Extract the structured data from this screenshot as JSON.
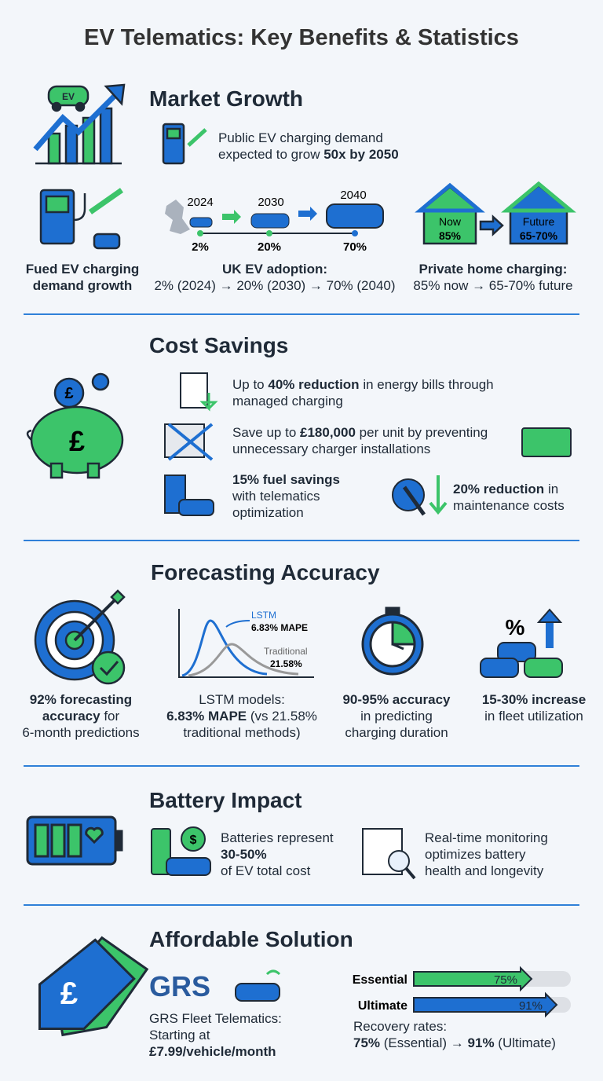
{
  "title": "EV Telematics: Key Benefits & Statistics",
  "market_growth": {
    "heading": "Market Growth",
    "icon_text": "EV",
    "headline": [
      [
        "Public EV charging demand"
      ],
      [
        "expected to grow",
        {
          "bold": "50x by 2050"
        }
      ]
    ],
    "fuel_caption": [
      [
        {
          "bold": "Fued EV charging"
        }
      ],
      [
        {
          "bold": "demand growth"
        }
      ]
    ],
    "uk_years": [
      "2024",
      "2030",
      "2040"
    ],
    "uk_shares": [
      "2%",
      "20%",
      "70%"
    ],
    "uk_caption": [
      [
        {
          "bold": "UK EV adoption:"
        }
      ],
      [
        "2% (2024) → 20% (2030) → 70% (2040)"
      ]
    ],
    "home_now": [
      "Now",
      "85%"
    ],
    "home_future": [
      "Future",
      "65-70%"
    ],
    "home_caption": [
      [
        {
          "bold": "Private home charging:"
        }
      ],
      [
        "85% now → 65-70% future"
      ]
    ]
  },
  "cost_savings": {
    "heading": "Cost Savings",
    "icon_text": "£",
    "energy": [
      [
        "Up to",
        {
          "bold": "40% reduction"
        },
        "in energy bills through"
      ],
      [
        "managed charging"
      ]
    ],
    "installations": [
      [
        "Save up to",
        {
          "bold": "£180,000"
        },
        "per unit by preventing"
      ],
      [
        "unnecessary charger installations"
      ]
    ],
    "fuel": [
      [
        {
          "bold": "15% fuel savings"
        }
      ],
      [
        "with telematics"
      ],
      [
        "optimization"
      ]
    ],
    "maintenance": [
      [
        {
          "bold": "20% reduction"
        },
        "in"
      ],
      [
        "maintenance costs"
      ]
    ]
  },
  "forecasting_accuracy": {
    "heading": "Forecasting Accuracy",
    "icon_text": "%",
    "chart_labels": {
      "lstm": "LSTM",
      "lstm_value": "6.83% MAPE",
      "traditional": "Traditional",
      "traditional_value": "21.58%"
    },
    "items": [
      [
        [
          {
            "bold": "92% forecasting"
          }
        ],
        [
          {
            "bold": "accuracy"
          },
          "for"
        ],
        [
          "6-month predictions"
        ]
      ],
      [
        [
          "LSTM models:"
        ],
        [
          {
            "bold": "6.83% MAPE"
          },
          "(vs 21.58%"
        ],
        [
          "traditional methods)"
        ]
      ],
      [
        [
          {
            "bold": "90-95% accuracy"
          }
        ],
        [
          "in predicting"
        ],
        [
          "charging duration"
        ]
      ],
      [
        [
          {
            "bold": "15-30% increase"
          }
        ],
        [
          "in fleet utilization"
        ]
      ]
    ]
  },
  "battery_impact": {
    "heading": "Battery Impact",
    "icon_text": "$",
    "cost_share": [
      [
        "Batteries represent"
      ],
      [
        {
          "bold": "30-50%"
        }
      ],
      [
        "of EV total cost"
      ]
    ],
    "monitoring": [
      [
        "Real-time monitoring"
      ],
      [
        "optimizes battery"
      ],
      [
        "health and longevity"
      ]
    ]
  },
  "affordable_solution": {
    "heading": "Affordable Solution",
    "icon_text": "£",
    "brand": "GRS",
    "offer": [
      [
        "GRS Fleet Telematics:"
      ],
      [
        "Starting at"
      ],
      [
        {
          "bold": "£7.99/vehicle/month"
        }
      ]
    ],
    "recovery": {
      "xlim": [
        0,
        100
      ],
      "bars": [
        {
          "name": "Essential",
          "value": 75,
          "label": "75%",
          "color": "#3cc46a"
        },
        {
          "name": "Ultimate",
          "value": 91,
          "label": "91%",
          "color": "#1e6fd1"
        }
      ]
    },
    "recovery_caption": [
      [
        "Recovery rates:"
      ],
      [
        {
          "bold": "75%"
        },
        "(Essential) →",
        {
          "bold": "91%"
        },
        "(Ultimate)"
      ]
    ]
  }
}
